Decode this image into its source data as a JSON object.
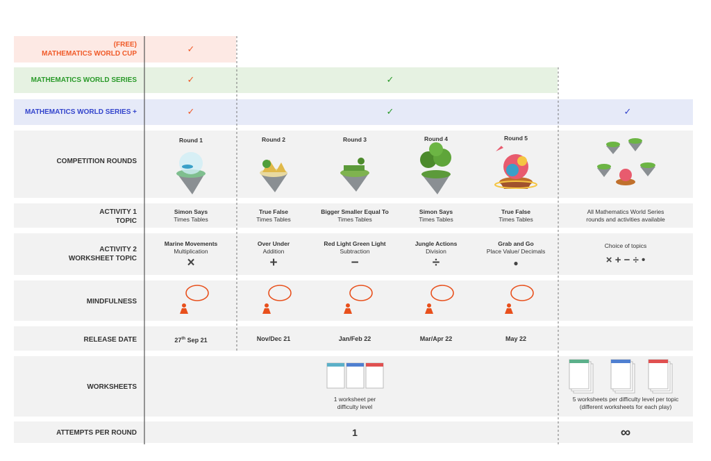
{
  "tiers": [
    {
      "label_lines": [
        "(FREE)",
        "MATHEMATICS WORLD CUP"
      ],
      "checks": [
        "✓"
      ]
    },
    {
      "label_lines": [
        "MATHEMATICS WORLD SERIES"
      ],
      "checks": [
        "✓",
        "✓"
      ]
    },
    {
      "label_lines": [
        "MATHEMATICS WORLD SERIES +"
      ],
      "checks": [
        "✓",
        "✓",
        "✓"
      ]
    }
  ],
  "rounds": {
    "label": "COMPETITION ROUNDS",
    "items": [
      "Round 1",
      "Round 2",
      "Round 3",
      "Round 4",
      "Round 5"
    ]
  },
  "activity1": {
    "label_lines": [
      "ACTIVITY 1",
      "TOPIC"
    ],
    "cells": [
      {
        "title": "Simon Says",
        "subtitle": "Times Tables"
      },
      {
        "title": "True False",
        "subtitle": "Times Tables"
      },
      {
        "title": "Bigger Smaller Equal To",
        "subtitle": "Times Tables"
      },
      {
        "title": "Simon Says",
        "subtitle": "Times Tables"
      },
      {
        "title": "True False",
        "subtitle": "Times Tables"
      }
    ],
    "plus_lines": [
      "All Mathematics World Series",
      "rounds and activities available"
    ]
  },
  "activity2": {
    "label_lines": [
      "ACTIVITY 2",
      "WORKSHEET TOPIC"
    ],
    "cells": [
      {
        "title": "Marine Movements",
        "subtitle": "Multiplication",
        "symbol": "×"
      },
      {
        "title": "Over Under",
        "subtitle": "Addition",
        "symbol": "+"
      },
      {
        "title": "Red Light Green Light",
        "subtitle": "Subtraction",
        "symbol": "−"
      },
      {
        "title": "Jungle Actions",
        "subtitle": "Division",
        "symbol": "÷"
      },
      {
        "title": "Grab and Go",
        "subtitle": "Place Value/ Decimals",
        "symbol": "●"
      }
    ],
    "plus_title": "Choice of topics",
    "plus_symbols": "× + − ÷ •"
  },
  "mindfulness": {
    "label": "MINDFULNESS"
  },
  "release": {
    "label": "RELEASE DATE",
    "first": {
      "day": "27",
      "sup": "th",
      "rest": "Sep 21"
    },
    "dates": [
      "Nov/Dec 21",
      "Jan/Feb 22",
      "Mar/Apr 22",
      "May 22"
    ]
  },
  "worksheets": {
    "label": "WORKSHEETS",
    "standard_lines": [
      "1 worksheet per",
      "difficulty level"
    ],
    "plus_lines": [
      "5 worksheets per difficulty level per topic",
      "(different worksheets for each play)"
    ]
  },
  "attempts": {
    "label": "ATTEMPTS PER ROUND",
    "standard": 1,
    "plus": "∞"
  }
}
